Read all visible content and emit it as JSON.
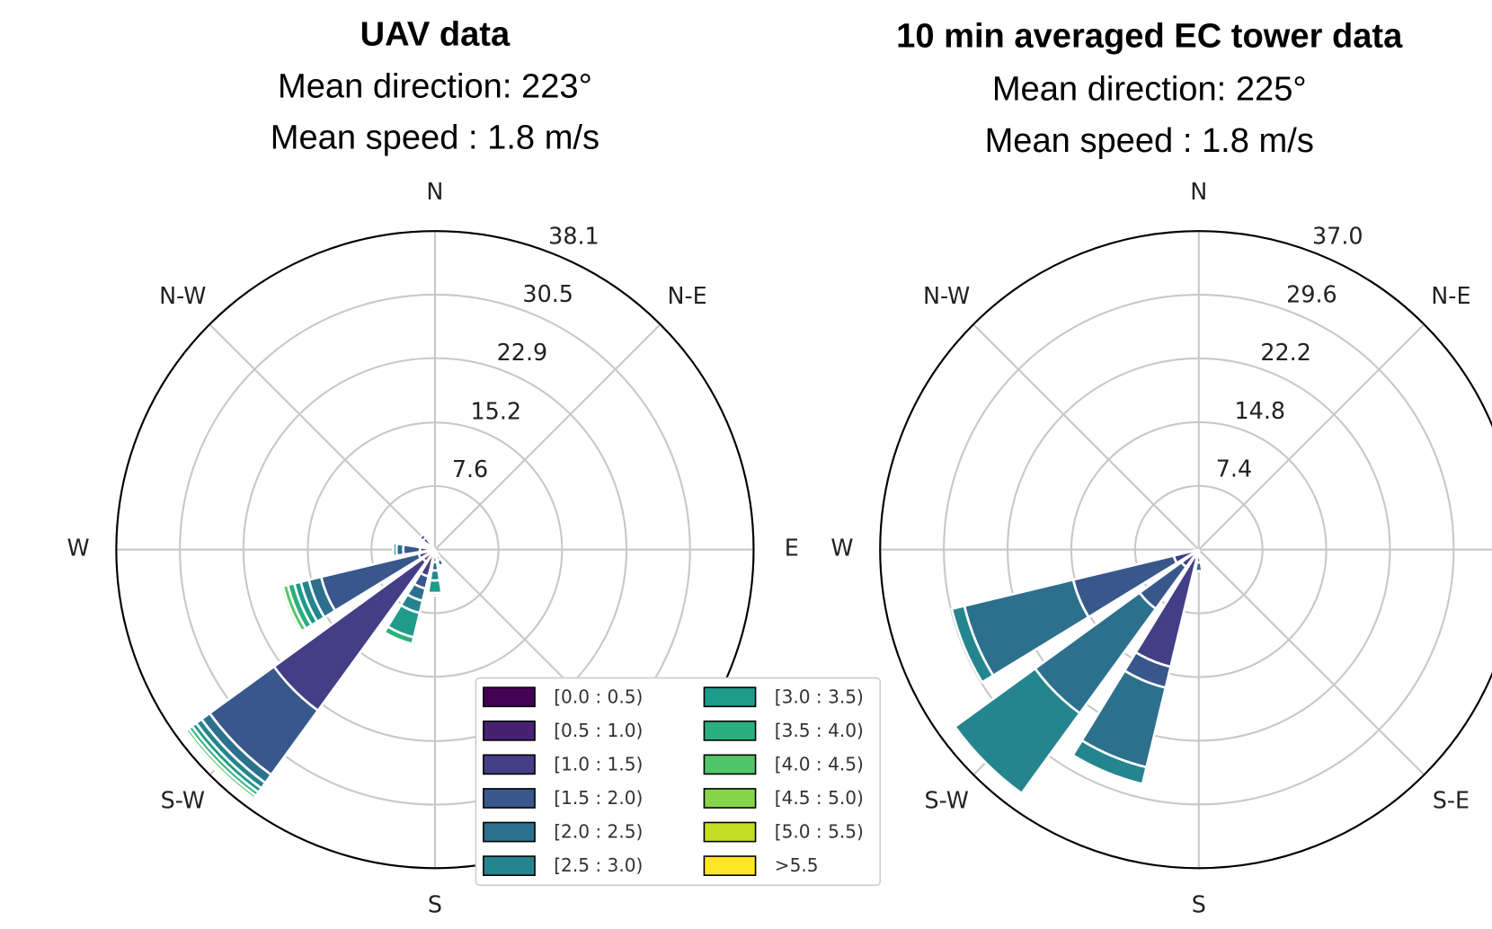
{
  "chart_data": [
    {
      "type": "windrose",
      "title": "UAV data",
      "subtitle": [
        "Mean direction: 223°",
        "Mean speed : 1.8 m/s"
      ],
      "direction_labels": [
        "N",
        "N-E",
        "E",
        "S-E",
        "S",
        "S-W",
        "W",
        "N-W"
      ],
      "x": [
        0,
        22.5,
        45,
        67.5,
        90,
        112.5,
        135,
        157.5,
        180,
        202.5,
        225,
        247.5,
        270,
        292.5,
        315,
        337.5
      ],
      "ylim": [
        0,
        38.1
      ],
      "yticks": [
        7.6,
        15.2,
        22.9,
        30.5,
        38.1
      ],
      "grid": true,
      "legend": "lower right",
      "series": [
        {
          "name": "[0.0 : 0.5)",
          "color": "#440154",
          "values": [
            0,
            0,
            0,
            0,
            0,
            0,
            0,
            0,
            0,
            0,
            0.3,
            0,
            0,
            0,
            0,
            0
          ]
        },
        {
          "name": "[0.5 : 1.0)",
          "color": "#482173",
          "values": [
            0,
            0,
            0,
            0,
            0,
            0,
            0,
            0.5,
            0,
            0.8,
            1.5,
            0.5,
            0.3,
            0,
            0.8,
            0
          ]
        },
        {
          "name": "[1.0 : 1.5)",
          "color": "#433e85",
          "values": [
            0,
            0,
            0,
            0,
            0,
            0,
            0,
            0.8,
            0.5,
            2.5,
            22,
            1.5,
            1.5,
            0,
            1,
            0
          ]
        },
        {
          "name": "[1.5 : 2.0)",
          "color": "#38588c",
          "values": [
            0,
            0,
            0,
            0,
            0,
            0,
            0,
            0.7,
            1,
            1.5,
            9.5,
            12,
            2,
            0,
            0.5,
            0
          ]
        },
        {
          "name": "[2.0 : 2.5)",
          "color": "#2d708e",
          "values": [
            0,
            0,
            0,
            0,
            0,
            0,
            0,
            0,
            1,
            1.5,
            1.2,
            1.5,
            0.8,
            0,
            0,
            0
          ]
        },
        {
          "name": "[2.5 : 3.0)",
          "color": "#25858e",
          "values": [
            0,
            0,
            0,
            0,
            0,
            0,
            0,
            0,
            1.2,
            1.5,
            0.8,
            1,
            0.4,
            0,
            0,
            0
          ]
        },
        {
          "name": "[3.0 : 3.5)",
          "color": "#1e9b8a",
          "values": [
            0,
            0,
            0,
            0,
            0,
            0,
            0,
            0,
            1.5,
            3,
            0.6,
            0.8,
            0,
            0,
            0,
            0
          ]
        },
        {
          "name": "[3.5 : 4.0)",
          "color": "#2ab07f",
          "values": [
            0,
            0,
            0,
            0,
            0,
            0,
            0,
            0,
            0.3,
            0.8,
            0.5,
            0.8,
            0,
            0,
            0,
            0
          ]
        },
        {
          "name": "[4.0 : 4.5)",
          "color": "#52c569",
          "values": [
            0,
            0,
            0,
            0,
            0,
            0,
            0,
            0,
            0,
            0,
            0.4,
            0.6,
            0,
            0,
            0,
            0
          ]
        },
        {
          "name": "[4.5 : 5.0)",
          "color": "#86d549",
          "values": [
            0,
            0,
            0,
            0,
            0,
            0,
            0,
            0,
            0,
            0,
            0.3,
            0.3,
            0,
            0,
            0,
            0
          ]
        },
        {
          "name": "[5.0 : 5.5)",
          "color": "#c2df23",
          "values": [
            0,
            0,
            0,
            0,
            0,
            0,
            0,
            0,
            0,
            0,
            0.1,
            0,
            0,
            0,
            0,
            0
          ]
        },
        {
          "name": ">5.5",
          "color": "#fde725",
          "values": [
            0,
            0,
            0,
            0,
            0,
            0,
            0,
            0,
            0,
            0,
            0,
            0,
            0,
            0,
            0,
            0
          ]
        }
      ]
    },
    {
      "type": "windrose",
      "title": "10 min averaged EC tower data",
      "subtitle": [
        "Mean direction: 225°",
        "Mean speed : 1.8 m/s"
      ],
      "direction_labels": [
        "N",
        "N-E",
        null,
        "S-E",
        "S",
        "S-W",
        "W",
        "N-W"
      ],
      "x": [
        0,
        22.5,
        45,
        67.5,
        90,
        112.5,
        135,
        157.5,
        180,
        202.5,
        225,
        247.5,
        270,
        292.5,
        315,
        337.5
      ],
      "ylim": [
        0,
        37
      ],
      "yticks": [
        7.4,
        14.8,
        22.2,
        29.6,
        {
          "value": 37,
          "label": "37.0"
        }
      ],
      "grid": true,
      "series": [
        {
          "color": "#440154",
          "values": [
            0,
            0,
            0,
            0,
            0,
            0,
            0,
            0,
            0,
            0,
            0,
            0,
            0,
            0,
            0,
            0
          ]
        },
        {
          "color": "#482173",
          "values": [
            0,
            0,
            0,
            0,
            0,
            0,
            0,
            0,
            0,
            1,
            0.5,
            0.5,
            0,
            0,
            0,
            0
          ]
        },
        {
          "color": "#433e85",
          "values": [
            0,
            0,
            0,
            0,
            0,
            0,
            0,
            0,
            0,
            13,
            2,
            2.5,
            0,
            0,
            0,
            0
          ]
        },
        {
          "color": "#38588c",
          "values": [
            0,
            0,
            0,
            0,
            0,
            0,
            0,
            0,
            1.5,
            2.5,
            6,
            12,
            0,
            0,
            0,
            0
          ]
        },
        {
          "color": "#2d708e",
          "values": [
            0,
            0,
            0,
            0,
            0,
            0,
            0,
            0,
            1,
            9.5,
            15,
            13,
            0,
            0,
            0,
            0
          ]
        },
        {
          "color": "#25858e",
          "values": [
            0,
            0,
            0,
            0,
            0,
            0,
            0,
            0,
            0,
            2,
            11.5,
            1.5,
            0,
            0,
            0,
            0
          ]
        },
        {
          "color": "#1e9b8a",
          "values": [
            0,
            0,
            0,
            0,
            0,
            0,
            0,
            0,
            0,
            0,
            0,
            0,
            0,
            0,
            0,
            0
          ]
        },
        {
          "color": "#2ab07f",
          "values": [
            0,
            0,
            0,
            0,
            0,
            0,
            0,
            0,
            0,
            0,
            0,
            0,
            0,
            0,
            0,
            0
          ]
        },
        {
          "color": "#52c569",
          "values": [
            0,
            0,
            0,
            0,
            0,
            0,
            0,
            0,
            0,
            0,
            0,
            0,
            0,
            0,
            0,
            0
          ]
        },
        {
          "color": "#86d549",
          "values": [
            0,
            0,
            0,
            0,
            0,
            0,
            0,
            0,
            0,
            0,
            0,
            0,
            0,
            0,
            0,
            0
          ]
        },
        {
          "color": "#c2df23",
          "values": [
            0,
            0,
            0,
            0,
            0,
            0,
            0,
            0,
            0,
            0,
            0,
            0,
            0,
            0,
            0,
            0
          ]
        },
        {
          "color": "#fde725",
          "values": [
            0,
            0,
            0,
            0,
            0,
            0,
            0,
            0,
            0,
            0,
            0,
            0,
            0,
            0,
            0,
            0
          ]
        }
      ]
    }
  ]
}
